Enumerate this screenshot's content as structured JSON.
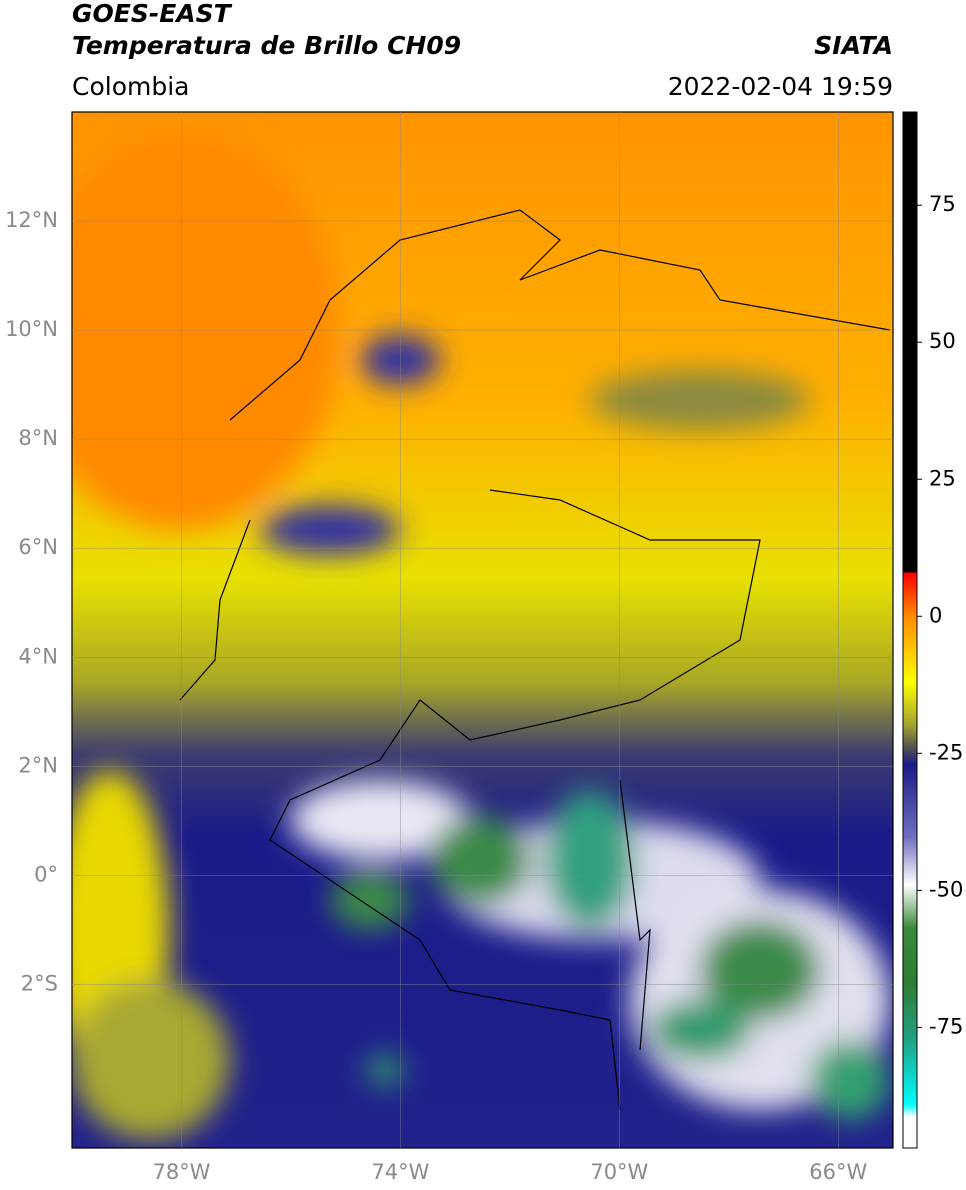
{
  "header": {
    "title": "GOES-EAST",
    "subtitle": "Temperatura de Brillo CH09",
    "region": "Colombia",
    "agency": "SIATA",
    "datetime": "2022-02-04 19:59"
  },
  "map": {
    "xlim": [
      -80,
      -65
    ],
    "ylim": [
      -5,
      14
    ],
    "xticks": [
      {
        "value": -78,
        "label": "78°W"
      },
      {
        "value": -74,
        "label": "74°W"
      },
      {
        "value": -70,
        "label": "70°W"
      },
      {
        "value": -66,
        "label": "66°W"
      }
    ],
    "yticks": [
      {
        "value": 12,
        "label": "12°N"
      },
      {
        "value": 10,
        "label": "10°N"
      },
      {
        "value": 8,
        "label": "8°N"
      },
      {
        "value": 6,
        "label": "6°N"
      },
      {
        "value": 4,
        "label": "4°N"
      },
      {
        "value": 2,
        "label": "2°N"
      },
      {
        "value": 0,
        "label": "0°"
      },
      {
        "value": -2,
        "label": "2°S"
      }
    ],
    "grid": true
  },
  "colorbar": {
    "lim": [
      -97,
      92
    ],
    "ticks": [
      75,
      50,
      25,
      0,
      -25,
      -50,
      -75
    ]
  }
}
